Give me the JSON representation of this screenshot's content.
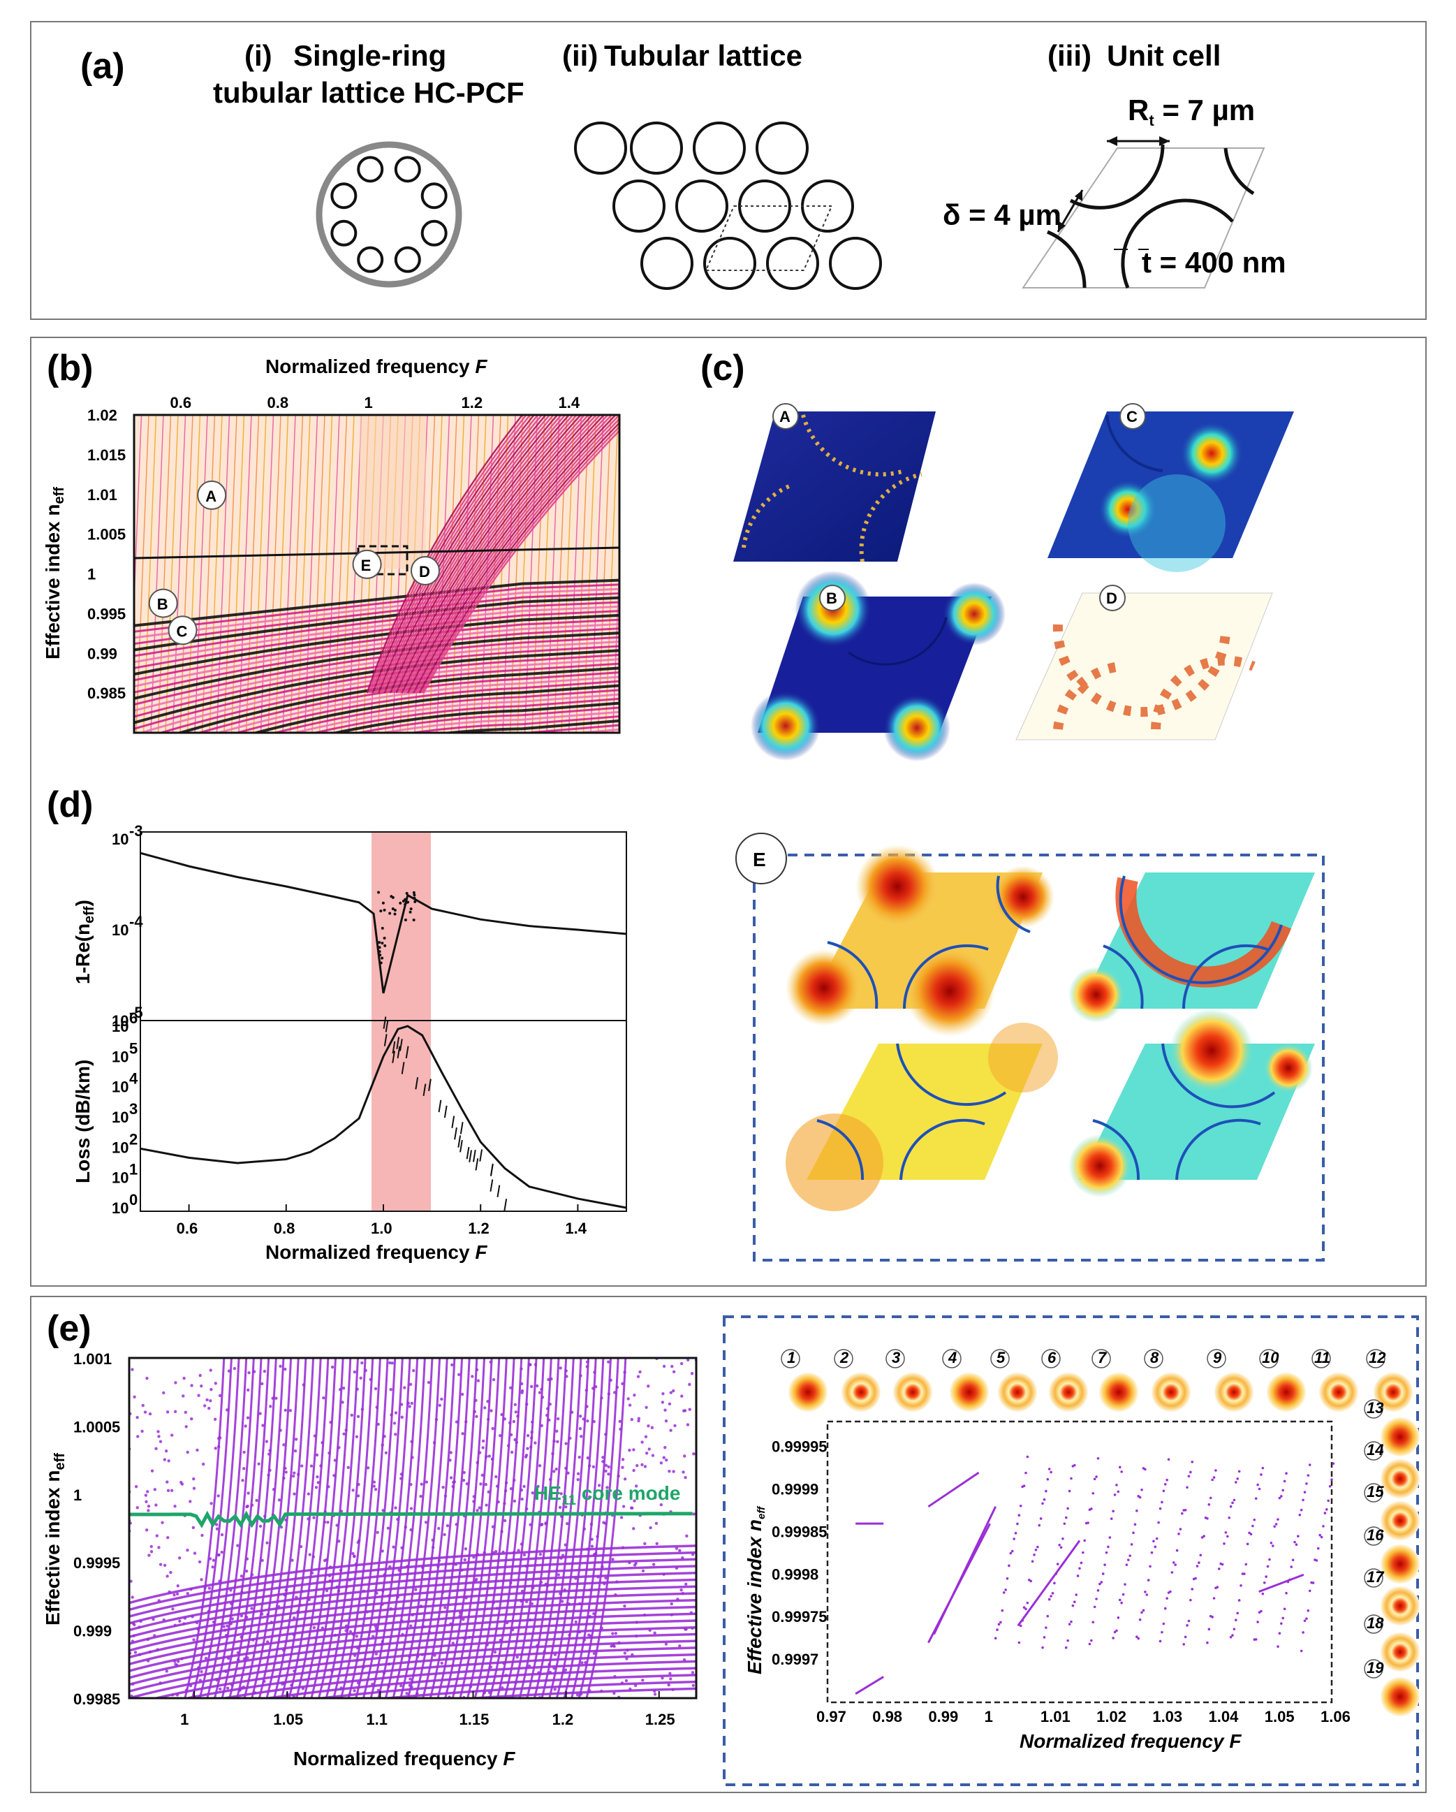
{
  "panel_a": {
    "label": "(a)",
    "sub_i_num": "(i)",
    "sub_i_line1": "Single-ring",
    "sub_i_line2": "tubular lattice HC-PCF",
    "sub_ii_num": "(ii)",
    "sub_ii": "Tubular lattice",
    "sub_iii_num": "(iii)",
    "sub_iii": "Unit cell",
    "rt": "R",
    "rt_sub": "t",
    "rt_val": " = 7 µm",
    "delta": "δ = 4 µm",
    "thick": "t = 400 nm"
  },
  "panel_b": {
    "label": "(b)",
    "top_axis_label": "Normalized frequency",
    "top_axis_var": "F",
    "y_label": "Effective index n",
    "y_sub": "eff",
    "x_ticks": [
      "0.6",
      "0.8",
      "1",
      "1.2",
      "1.4"
    ],
    "y_ticks": [
      "1.02",
      "1.015",
      "1.01",
      "1.005",
      "1",
      "0.995",
      "0.99",
      "0.985"
    ],
    "markers": [
      "A",
      "B",
      "C",
      "D",
      "E"
    ]
  },
  "panel_c": {
    "label": "(c)",
    "markers": [
      "A",
      "C",
      "B",
      "D"
    ]
  },
  "panel_d": {
    "label": "(d)",
    "upper_y_label": "1-Re(n",
    "upper_y_sub": "eff",
    "upper_y_close": ")",
    "upper_ticks": [
      "10",
      "10",
      "10"
    ],
    "upper_exps": [
      "-3",
      "-4",
      "-5"
    ],
    "lower_y_label": "Loss (dB/km)",
    "lower_ticks": [
      "10",
      "10",
      "10",
      "10",
      "10",
      "10",
      "10"
    ],
    "lower_exps": [
      "6",
      "5",
      "4",
      "3",
      "2",
      "1",
      "0"
    ],
    "x_ticks": [
      "0.6",
      "0.8",
      "1.0",
      "1.2",
      "1.4"
    ],
    "x_label": "Normalized frequency",
    "x_var": "F"
  },
  "panel_E": {
    "marker": "E"
  },
  "panel_e": {
    "label": "(e)",
    "y_label": "Effective index n",
    "y_sub": "eff",
    "y_ticks": [
      "1.001",
      "1.0005",
      "1",
      "0.9995",
      "0.999",
      "0.9985"
    ],
    "x_ticks": [
      "1",
      "1.05",
      "1.1",
      "1.15",
      "1.2",
      "1.25"
    ],
    "x_label": "Normalized frequency",
    "x_var": "F",
    "core_mode_label": "HE",
    "core_mode_sub": "11",
    "core_mode_rest": " core mode",
    "inset_y_label": "Effective index n",
    "inset_y_sub": "eff",
    "inset_y_ticks": [
      "0.99995",
      "0.9999",
      "0.99985",
      "0.9998",
      "0.99975",
      "0.9997"
    ],
    "inset_x_ticks": [
      "0.97",
      "0.98",
      "0.99",
      "1",
      "1.01",
      "1.02",
      "1.03",
      "1.04",
      "1.05",
      "1.06"
    ],
    "inset_x_label": "Normalized frequency",
    "inset_x_var": "F",
    "mode_numbers": [
      "1",
      "2",
      "3",
      "4",
      "5",
      "6",
      "7",
      "8",
      "9",
      "10",
      "11",
      "12",
      "13",
      "14",
      "15",
      "16",
      "17",
      "18",
      "19"
    ]
  },
  "colors": {
    "purple": "#9a2fd6",
    "green": "#1fa56a",
    "pinkband": "#f4a9a9",
    "dash": "#3a5da8"
  },
  "chart_data": [
    {
      "type": "line",
      "id": "panel-d-upper",
      "title": "",
      "xlabel": "Normalized frequency F",
      "ylabel": "1-Re(n_eff)",
      "xlim": [
        0.5,
        1.5
      ],
      "ylim": [
        1e-05,
        0.001
      ],
      "yscale": "log",
      "x": [
        0.5,
        0.6,
        0.7,
        0.8,
        0.9,
        0.95,
        0.98,
        1.0,
        1.05,
        1.1,
        1.2,
        1.3,
        1.4,
        1.5
      ],
      "values": [
        0.0007,
        0.0005,
        0.00038,
        0.0003,
        0.00023,
        0.0002,
        0.00015,
        2e-05,
        0.00024,
        0.00017,
        0.00013,
        0.00011,
        0.0001,
        9e-05
      ],
      "band": [
        0.98,
        1.1
      ]
    },
    {
      "type": "line",
      "id": "panel-d-lower",
      "title": "",
      "xlabel": "Normalized frequency F",
      "ylabel": "Loss (dB/km)",
      "xlim": [
        0.5,
        1.5
      ],
      "ylim": [
        1,
        1000000.0
      ],
      "yscale": "log",
      "x": [
        0.5,
        0.6,
        0.7,
        0.8,
        0.85,
        0.9,
        0.95,
        1.0,
        1.03,
        1.05,
        1.08,
        1.12,
        1.16,
        1.2,
        1.25,
        1.3,
        1.4,
        1.5
      ],
      "values": [
        90,
        45,
        30,
        40,
        70,
        200,
        900,
        100000,
        800000,
        1000000,
        500000,
        30000,
        2000,
        150,
        20,
        5,
        2,
        1
      ],
      "band": [
        0.98,
        1.1
      ]
    }
  ]
}
